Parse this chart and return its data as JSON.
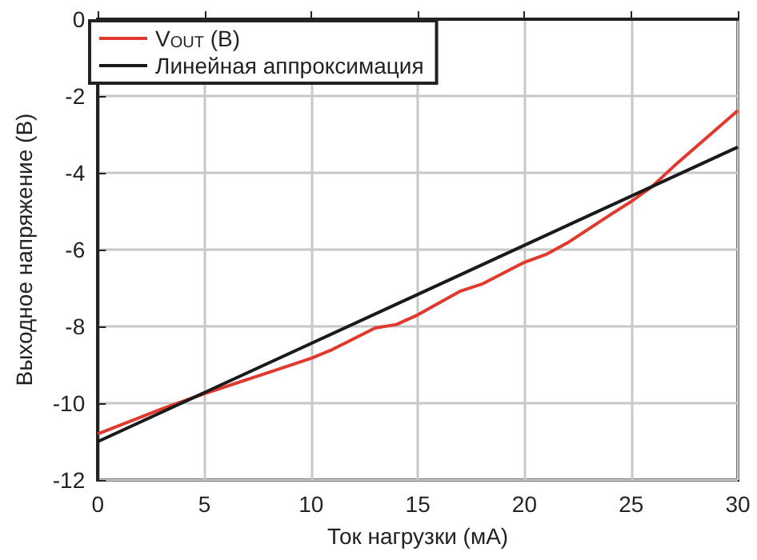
{
  "chart_data": {
    "type": "line",
    "xlabel": "Ток нагрузки (мА)",
    "ylabel": "Выходное напряжение (В)",
    "xlim": [
      0,
      30
    ],
    "xticks": [
      0,
      5,
      10,
      15,
      20,
      25,
      30
    ],
    "ylim": [
      -12,
      0
    ],
    "yticks": [
      -12,
      -10,
      -8,
      -6,
      -4,
      -2,
      0
    ],
    "grid": true,
    "legend": "top left",
    "marker": "none",
    "line_style": "solid",
    "series": [
      {
        "name": "V$_{OUT}$ (В)",
        "color": "#e03a2e",
        "x": [
          0,
          3,
          5,
          8,
          10,
          11,
          13,
          14,
          15,
          17,
          18,
          20,
          21,
          22,
          24,
          25,
          26,
          27,
          30
        ],
        "values": [
          -10.8,
          -10.15,
          -9.75,
          -9.2,
          -8.83,
          -8.6,
          -8.04,
          -7.95,
          -7.7,
          -7.08,
          -6.9,
          -6.33,
          -6.13,
          -5.83,
          -5.1,
          -4.75,
          -4.35,
          -3.83,
          -2.38
        ]
      },
      {
        "name": "Линейная аппроксимация",
        "color": "#1a1a1a",
        "x": [
          0,
          30
        ],
        "values": [
          -11.0,
          -3.33
        ]
      }
    ]
  }
}
